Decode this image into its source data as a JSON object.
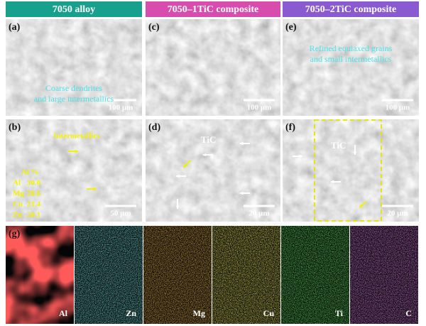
{
  "headers": [
    "7050 alloy",
    "7050–1TiC composite",
    "7050–2TiC composite"
  ],
  "panels": [
    {
      "label": "(a)",
      "scale_bar": "100 μm",
      "note": [
        "Coarse dendrites",
        "and large intermetallics"
      ]
    },
    {
      "label": "(b)",
      "scale_bar": "50 μm",
      "note": [
        "Intermetallics"
      ],
      "composition": {
        "title": "Al %",
        "rows": [
          [
            "Al",
            "30.0"
          ],
          [
            "Mg",
            "28.6"
          ],
          [
            "Cu",
            "21.4"
          ],
          [
            "Zn",
            "20.1"
          ]
        ]
      }
    },
    {
      "label": "(c)",
      "scale_bar": "100 μm"
    },
    {
      "label": "(d)",
      "scale_bar": "20 μm",
      "note": [
        "TiC"
      ]
    },
    {
      "label": "(e)",
      "scale_bar": "100 μm",
      "note": [
        "Refined equiaxed grains",
        "and small intermetallics"
      ]
    },
    {
      "label": "(f)",
      "scale_bar": "20 μm",
      "note": [
        "TiC"
      ]
    }
  ],
  "eds": {
    "label": "(g)",
    "elements": [
      "Al",
      "Zn",
      "Mg",
      "Cu",
      "Ti",
      "C"
    ]
  }
}
